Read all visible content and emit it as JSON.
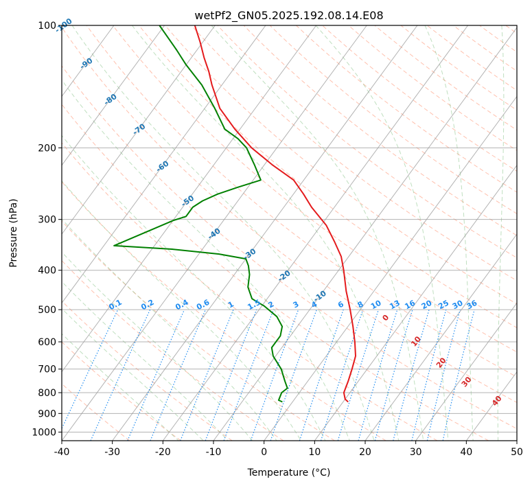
{
  "chart_data": {
    "type": "line",
    "subtype": "skew-T log-P diagram",
    "title": "wetPf2_GN05.2025.192.08.14.E08",
    "xlabel": "Temperature (°C)",
    "ylabel": "Pressure (hPa)",
    "xlim": [
      -40,
      50
    ],
    "ylim": [
      1050,
      100
    ],
    "y_scale": "log",
    "x_ticks": [
      -40,
      -30,
      -20,
      -10,
      0,
      10,
      20,
      30,
      40,
      50
    ],
    "y_ticks": [
      100,
      200,
      300,
      400,
      500,
      600,
      700,
      800,
      900,
      1000
    ],
    "grid": true,
    "colors": {
      "temperature": "#e41a1c",
      "dewpoint": "#008000",
      "isotherm": "#999999",
      "dry_adiabat": "#ff8c69",
      "moist_adiabat": "#7fbf7f",
      "mixing_ratio": "#1f8cf0",
      "isotherm_label": "#1f77b4",
      "moist_label": "#d62728",
      "lcl_isotherm": "#e6c8a0"
    },
    "series": [
      {
        "color": "#e41a1c",
        "points": [
          {
            "p": 843,
            "t": 11.0
          },
          {
            "p": 830,
            "t": 10.0
          },
          {
            "p": 800,
            "t": 8.8
          },
          {
            "p": 750,
            "t": 8.0
          },
          {
            "p": 700,
            "t": 7.0
          },
          {
            "p": 650,
            "t": 5.8
          },
          {
            "p": 600,
            "t": 3.6
          },
          {
            "p": 550,
            "t": 1.0
          },
          {
            "p": 500,
            "t": -2.0
          },
          {
            "p": 450,
            "t": -5.5
          },
          {
            "p": 400,
            "t": -9.0
          },
          {
            "p": 370,
            "t": -11.5
          },
          {
            "p": 340,
            "t": -15.0
          },
          {
            "p": 310,
            "t": -19.0
          },
          {
            "p": 280,
            "t": -24.5
          },
          {
            "p": 260,
            "t": -28.0
          },
          {
            "p": 240,
            "t": -32.0
          },
          {
            "p": 220,
            "t": -38.5
          },
          {
            "p": 200,
            "t": -45.0
          },
          {
            "p": 180,
            "t": -51.0
          },
          {
            "p": 160,
            "t": -57.0
          },
          {
            "p": 140,
            "t": -62.0
          },
          {
            "p": 130,
            "t": -64.5
          },
          {
            "p": 120,
            "t": -67.5
          },
          {
            "p": 110,
            "t": -70.5
          },
          {
            "p": 100,
            "t": -74.0
          }
        ]
      },
      {
        "color": "#008000",
        "points": [
          {
            "p": 843,
            "t": -2.0
          },
          {
            "p": 835,
            "t": -3.0
          },
          {
            "p": 800,
            "t": -3.5
          },
          {
            "p": 780,
            "t": -3.0
          },
          {
            "p": 750,
            "t": -4.5
          },
          {
            "p": 700,
            "t": -7.0
          },
          {
            "p": 650,
            "t": -10.5
          },
          {
            "p": 620,
            "t": -12.0
          },
          {
            "p": 580,
            "t": -12.0
          },
          {
            "p": 550,
            "t": -13.0
          },
          {
            "p": 520,
            "t": -15.5
          },
          {
            "p": 490,
            "t": -19.5
          },
          {
            "p": 470,
            "t": -23.0
          },
          {
            "p": 440,
            "t": -25.5
          },
          {
            "p": 410,
            "t": -27.0
          },
          {
            "p": 390,
            "t": -28.5
          },
          {
            "p": 375,
            "t": -30.0
          },
          {
            "p": 365,
            "t": -36.0
          },
          {
            "p": 355,
            "t": -46.0
          },
          {
            "p": 348,
            "t": -58.0
          },
          {
            "p": 302,
            "t": -50.0
          },
          {
            "p": 295,
            "t": -48.0
          },
          {
            "p": 280,
            "t": -48.0
          },
          {
            "p": 270,
            "t": -47.0
          },
          {
            "p": 260,
            "t": -45.0
          },
          {
            "p": 250,
            "t": -42.0
          },
          {
            "p": 240,
            "t": -38.5
          },
          {
            "p": 220,
            "t": -42.0
          },
          {
            "p": 200,
            "t": -46.0
          },
          {
            "p": 190,
            "t": -49.0
          },
          {
            "p": 180,
            "t": -53.0
          },
          {
            "p": 160,
            "t": -58.0
          },
          {
            "p": 140,
            "t": -64.0
          },
          {
            "p": 125,
            "t": -70.0
          },
          {
            "p": 115,
            "t": -74.0
          },
          {
            "p": 100,
            "t": -81.0
          }
        ]
      }
    ],
    "isotherm_labels": [
      -100,
      -90,
      -80,
      -70,
      -60,
      -50,
      -40,
      -30,
      -20,
      -10
    ],
    "mixing_ratio_labels": [
      "0.1",
      "0.2",
      "0.4",
      "0.6",
      "1",
      "1.5",
      "2",
      "3",
      "4",
      "6",
      "8",
      "10",
      "13",
      "16",
      "20",
      "25",
      "30",
      "36"
    ],
    "moist_adiabat_labels": [
      "0",
      "10",
      "20",
      "30",
      "40"
    ]
  }
}
